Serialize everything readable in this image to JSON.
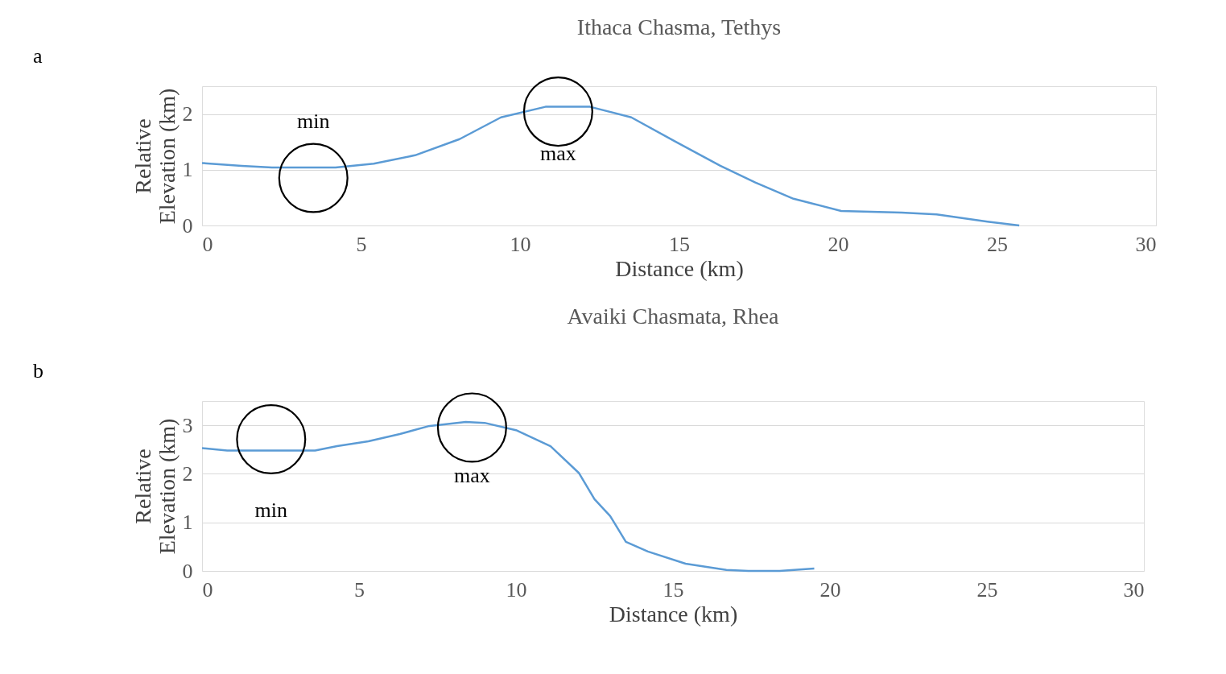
{
  "chart_data": [
    {
      "type": "line",
      "title": "Ithaca Chasma, Tethys",
      "xlabel": "Distance (km)",
      "ylabel": "Relative Elevation (km)",
      "xlim": [
        0,
        30
      ],
      "xticks": [
        0,
        5,
        10,
        15,
        20,
        25,
        30
      ],
      "ylim": [
        0,
        2.5
      ],
      "yticks": [
        0,
        1,
        2
      ],
      "grid": "y",
      "x": [
        0,
        1.25,
        2.2,
        4.2,
        5.4,
        6.7,
        8.1,
        9.4,
        10.8,
        12.2,
        13.5,
        14.9,
        16.3,
        17.4,
        18.6,
        20.1,
        22.0,
        23.1,
        24.7,
        25.7
      ],
      "series": [
        {
          "color": "#5b9bd5",
          "values": [
            1.12,
            1.07,
            1.04,
            1.04,
            1.11,
            1.26,
            1.55,
            1.94,
            2.13,
            2.13,
            1.94,
            1.5,
            1.07,
            0.77,
            0.48,
            0.26,
            0.23,
            0.2,
            0.07,
            0
          ]
        }
      ],
      "annotations": [
        "a",
        {
          "text": "min",
          "x": 3.5,
          "y": 1.04
        },
        {
          "text": "max",
          "x": 11.2,
          "y": 2.13
        }
      ]
    },
    {
      "type": "line",
      "title": "Avaiki Chasmata, Rhea",
      "xlabel": "Distance (km)",
      "ylabel": "Relative Elevation (km)",
      "xlim": [
        0,
        30
      ],
      "xticks": [
        0,
        5,
        10,
        15,
        20,
        25,
        30
      ],
      "ylim": [
        0,
        3.5
      ],
      "yticks": [
        0,
        1,
        2,
        3
      ],
      "grid": "y",
      "x": [
        0,
        0.8,
        3.6,
        4.3,
        5.3,
        6.3,
        7.2,
        8.4,
        9.0,
        10.0,
        11.1,
        12.0,
        12.5,
        13.0,
        13.5,
        14.2,
        15.4,
        16.7,
        17.4,
        18.4,
        19.5
      ],
      "series": [
        {
          "color": "#5b9bd5",
          "values": [
            2.53,
            2.48,
            2.48,
            2.57,
            2.67,
            2.82,
            2.98,
            3.07,
            3.05,
            2.9,
            2.57,
            2.02,
            1.48,
            1.13,
            0.6,
            0.4,
            0.15,
            0.02,
            0,
            0,
            0.05
          ]
        }
      ],
      "annotations": [
        "b",
        {
          "text": "min",
          "x": 2.2,
          "y": 2.48
        },
        {
          "text": "max",
          "x": 8.6,
          "y": 3.07
        }
      ]
    }
  ]
}
